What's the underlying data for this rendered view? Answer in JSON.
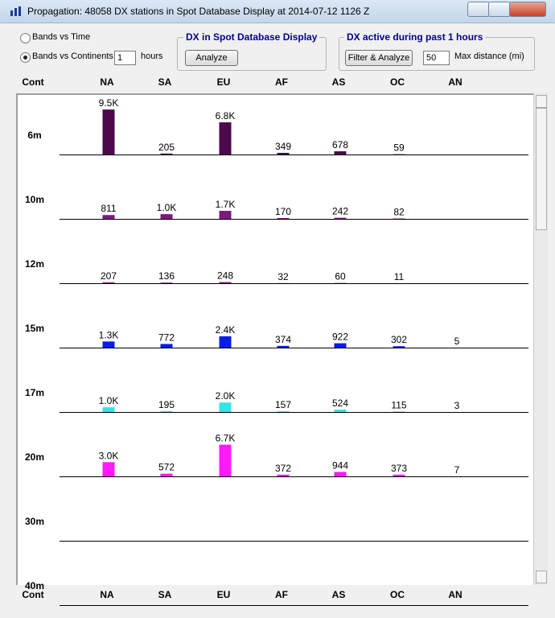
{
  "window": {
    "title": "Propagation: 48058 DX stations in Spot Database Display at 2014-07-12 1126 Z"
  },
  "controls": {
    "radio_time": "Bands vs Time",
    "radio_continents": "Bands vs Continents",
    "hours_value": "1",
    "hours_label": "hours",
    "group1_title": "DX in Spot Database Display",
    "analyze_button": "Analyze",
    "group2_title": "DX active during past 1 hours",
    "filter_button": "Filter & Analyze",
    "distance_value": "50",
    "distance_label": "Max distance (mi)"
  },
  "grid": {
    "columns": [
      "Cont",
      "NA",
      "SA",
      "EU",
      "AF",
      "AS",
      "OC",
      "AN"
    ],
    "rows": [
      {
        "band": "6m",
        "color": "#4b0a4b",
        "values": [
          9500,
          205,
          6800,
          349,
          678,
          59,
          null
        ],
        "value_labels": [
          "9.5K",
          null,
          "6.8K",
          null,
          null,
          null,
          null
        ]
      },
      {
        "band": "10m",
        "color": "#7d1a7d",
        "values": [
          811,
          1000,
          1700,
          170,
          242,
          82,
          null
        ],
        "value_labels": [
          null,
          "1.0K",
          "1.7K",
          null,
          null,
          null,
          null
        ]
      },
      {
        "band": "12m",
        "color": "#7d1a7d",
        "values": [
          207,
          136,
          248,
          32,
          60,
          11,
          null
        ]
      },
      {
        "band": "15m",
        "color": "#0a1ee6",
        "values": [
          1300,
          772,
          2400,
          374,
          922,
          302,
          5
        ],
        "value_labels": [
          "1.3K",
          null,
          "2.4K",
          null,
          null,
          null,
          null
        ]
      },
      {
        "band": "17m",
        "color": "#33e6e6",
        "values": [
          1000,
          195,
          2000,
          157,
          524,
          115,
          3
        ],
        "value_labels": [
          "1.0K",
          null,
          "2.0K",
          null,
          null,
          null,
          null
        ]
      },
      {
        "band": "20m",
        "color": "#ff1aff",
        "values": [
          3000,
          572,
          6700,
          372,
          944,
          373,
          7
        ],
        "value_labels": [
          "3.0K",
          null,
          "6.7K",
          null,
          null,
          null,
          null
        ]
      },
      {
        "band": "30m",
        "color": "#ff1aff",
        "values": [
          null,
          null,
          null,
          null,
          null,
          null,
          null
        ]
      },
      {
        "band": "40m",
        "color": "#ff1aff",
        "values": [
          null,
          null,
          null,
          null,
          null,
          null,
          null
        ]
      }
    ]
  }
}
